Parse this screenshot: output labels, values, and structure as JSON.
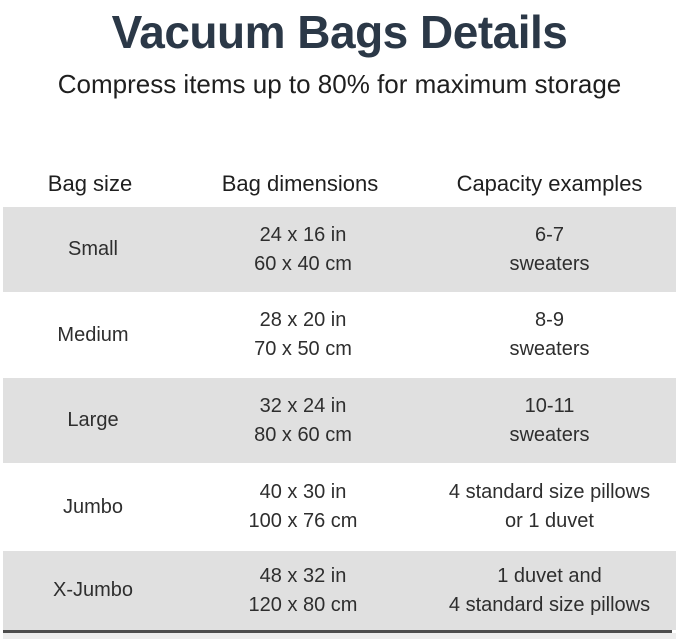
{
  "colors": {
    "title_navy": "#2b3847",
    "body_text": "#2e2e2e",
    "row_stripe_gray": "#e0e0e0",
    "bottom_divider": "#4d4d4d",
    "background": "#ffffff"
  },
  "header": {
    "title": "Vacuum Bags Details",
    "subtitle": "Compress items up to 80% for maximum storage"
  },
  "table": {
    "columns": [
      "Bag size",
      "Bag dimensions",
      "Capacity examples"
    ],
    "rows": [
      {
        "size": "Small",
        "dim_in": "24 x 16 in",
        "dim_cm": "60 x 40 cm",
        "cap1": "6-7",
        "cap2": "sweaters"
      },
      {
        "size": "Medium",
        "dim_in": "28 x 20 in",
        "dim_cm": "70 x 50 cm",
        "cap1": "8-9",
        "cap2": "sweaters"
      },
      {
        "size": "Large",
        "dim_in": "32 x 24 in",
        "dim_cm": "80 x 60 cm",
        "cap1": "10-11",
        "cap2": "sweaters"
      },
      {
        "size": "Jumbo",
        "dim_in": "40 x 30 in",
        "dim_cm": "100 x 76 cm",
        "cap1": "4 standard size pillows",
        "cap2": "or 1 duvet"
      },
      {
        "size": "X-Jumbo",
        "dim_in": "48 x 32 in",
        "dim_cm": "120 x 80 cm",
        "cap1": "1 duvet and",
        "cap2": "4 standard size pillows"
      }
    ]
  },
  "chart_data": {
    "type": "table",
    "title": "Vacuum Bags Details",
    "subtitle": "Compress items up to 80% for maximum storage",
    "columns": [
      "Bag size",
      "Bag dimensions",
      "Capacity examples"
    ],
    "rows": [
      [
        "Small",
        "24 x 16 in / 60 x 40 cm",
        "6-7 sweaters"
      ],
      [
        "Medium",
        "28 x 20 in / 70 x 50 cm",
        "8-9 sweaters"
      ],
      [
        "Large",
        "32 x 24 in / 80 x 60 cm",
        "10-11 sweaters"
      ],
      [
        "Jumbo",
        "40 x 30 in / 100 x 76 cm",
        "4 standard size pillows or 1 duvet"
      ],
      [
        "X-Jumbo",
        "48 x 32 in / 120 x 80 cm",
        "1 duvet and 4 standard size pillows"
      ]
    ],
    "layout": {
      "stripe_rows": [
        1,
        3,
        5
      ],
      "column_alignment": "center",
      "grid": "off"
    }
  }
}
